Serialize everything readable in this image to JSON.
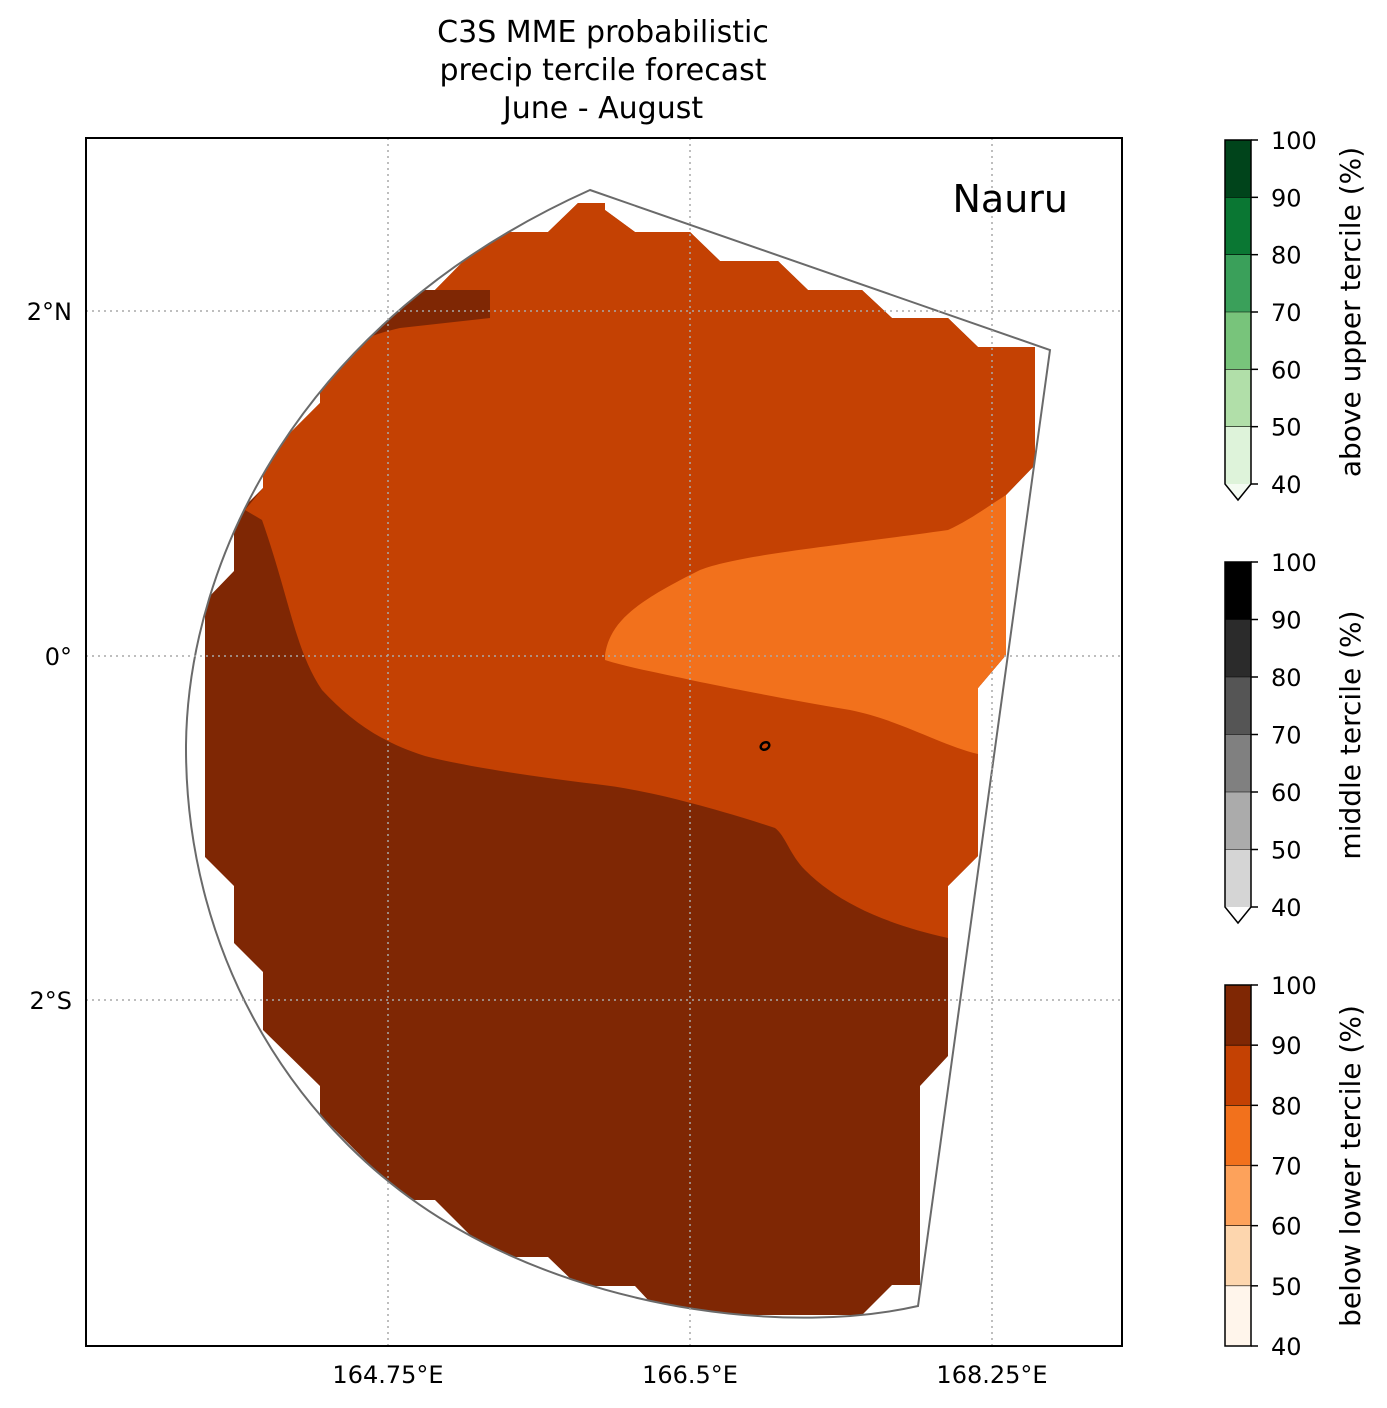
{
  "title": {
    "line1": "C3S MME probabilistic",
    "line2": "precip tercile forecast",
    "line3": "June - August"
  },
  "map": {
    "region_label": "Nauru",
    "lon_ticks": [
      "164.75°E",
      "166.5°E",
      "168.25°E"
    ],
    "lat_ticks": [
      "2°N",
      "0°",
      "2°S"
    ],
    "gridlines": "dotted"
  },
  "colorbars": [
    {
      "label": "above upper tercile (%)",
      "ticks": [
        "100",
        "90",
        "80",
        "70",
        "60",
        "50",
        "40"
      ],
      "colors": [
        "#00441b",
        "#0a7733",
        "#3aa05a",
        "#78c47b",
        "#b1dfa9",
        "#def3da"
      ],
      "extend_color": "#f4fbf2"
    },
    {
      "label": "middle tercile (%)",
      "ticks": [
        "100",
        "90",
        "80",
        "70",
        "60",
        "50",
        "40"
      ],
      "colors": [
        "#000000",
        "#2b2b2b",
        "#555555",
        "#808080",
        "#ababab",
        "#d5d5d5"
      ],
      "extend_color": "#ffffff"
    },
    {
      "label": "below lower tercile (%)",
      "ticks": [
        "100",
        "90",
        "80",
        "70",
        "60",
        "50",
        "40"
      ],
      "colors": [
        "#7f2704",
        "#c44103",
        "#f2711c",
        "#fda25b",
        "#fdd6ae",
        "#fff5eb"
      ]
    }
  ],
  "legend_colors": {
    "dark_brown": "#7f2704",
    "dark_orange": "#c44103",
    "orange": "#f2711c"
  }
}
